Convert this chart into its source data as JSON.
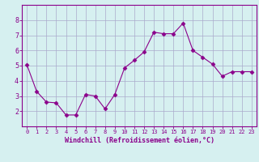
{
  "x": [
    0,
    1,
    2,
    3,
    4,
    5,
    6,
    7,
    8,
    9,
    10,
    11,
    12,
    13,
    14,
    15,
    16,
    17,
    18,
    19,
    20,
    21,
    22,
    23
  ],
  "y": [
    5.05,
    3.3,
    2.6,
    2.55,
    1.75,
    1.75,
    3.1,
    3.0,
    2.15,
    3.1,
    4.85,
    5.35,
    5.9,
    7.2,
    7.1,
    7.1,
    7.8,
    6.0,
    5.55,
    5.1,
    4.3,
    4.6,
    4.6,
    4.6
  ],
  "line_color": "#8B008B",
  "marker": "D",
  "marker_size": 2.5,
  "bg_color": "#d6f0f0",
  "grid_color": "#aaaacc",
  "xlabel": "Windchill (Refroidissement éolien,°C)",
  "xlabel_color": "#8B008B",
  "tick_color": "#8B008B",
  "axis_line_color": "#8B008B",
  "ylim": [
    1.0,
    9.0
  ],
  "xlim": [
    -0.5,
    23.5
  ],
  "yticks": [
    2,
    3,
    4,
    5,
    6,
    7,
    8
  ],
  "xticks": [
    0,
    1,
    2,
    3,
    4,
    5,
    6,
    7,
    8,
    9,
    10,
    11,
    12,
    13,
    14,
    15,
    16,
    17,
    18,
    19,
    20,
    21,
    22,
    23
  ]
}
